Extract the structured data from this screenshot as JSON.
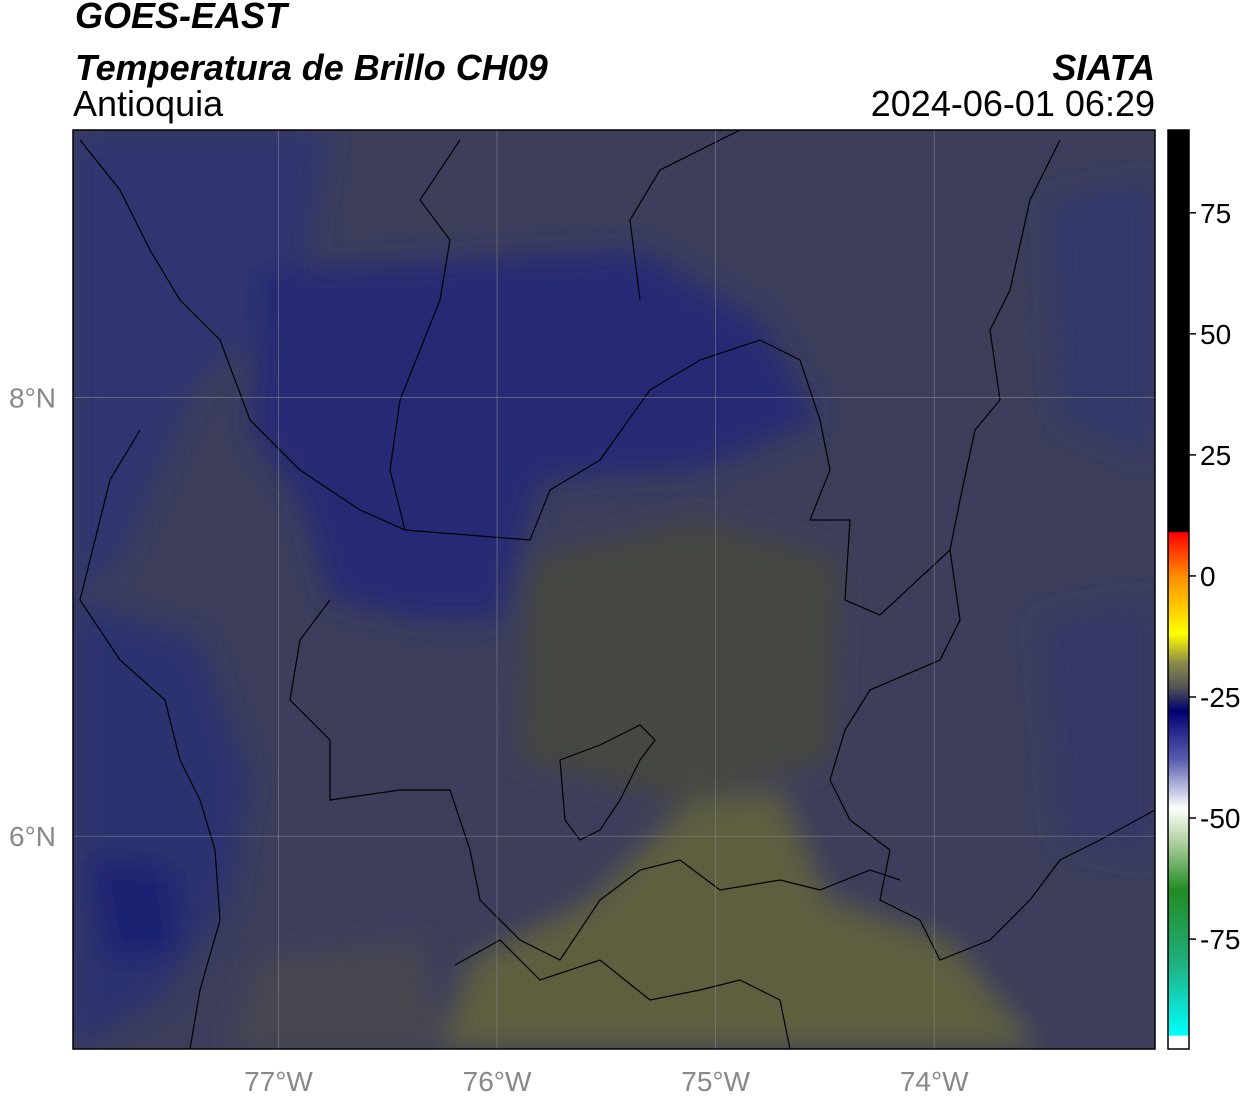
{
  "header": {
    "satellite": "GOES-EAST",
    "product": "Temperatura de Brillo CH09",
    "region": "Antioquia",
    "source": "SIATA",
    "datetime": "2024-06-01 06:29"
  },
  "map": {
    "xlim": [
      -77.94,
      -72.99
    ],
    "ylim": [
      5.03,
      9.22
    ],
    "xticks": [
      {
        "value": -77,
        "label": "77°W"
      },
      {
        "value": -76,
        "label": "76°W"
      },
      {
        "value": -75,
        "label": "75°W"
      },
      {
        "value": -74,
        "label": "74°W"
      }
    ],
    "yticks": [
      {
        "value": 6,
        "label": "6°N"
      },
      {
        "value": 8,
        "label": "8°N"
      }
    ],
    "grid": true
  },
  "colorbar": {
    "lim": [
      -97.7,
      92.1
    ],
    "ticks": [
      -75,
      -50,
      -25,
      0,
      25,
      50,
      75
    ]
  }
}
